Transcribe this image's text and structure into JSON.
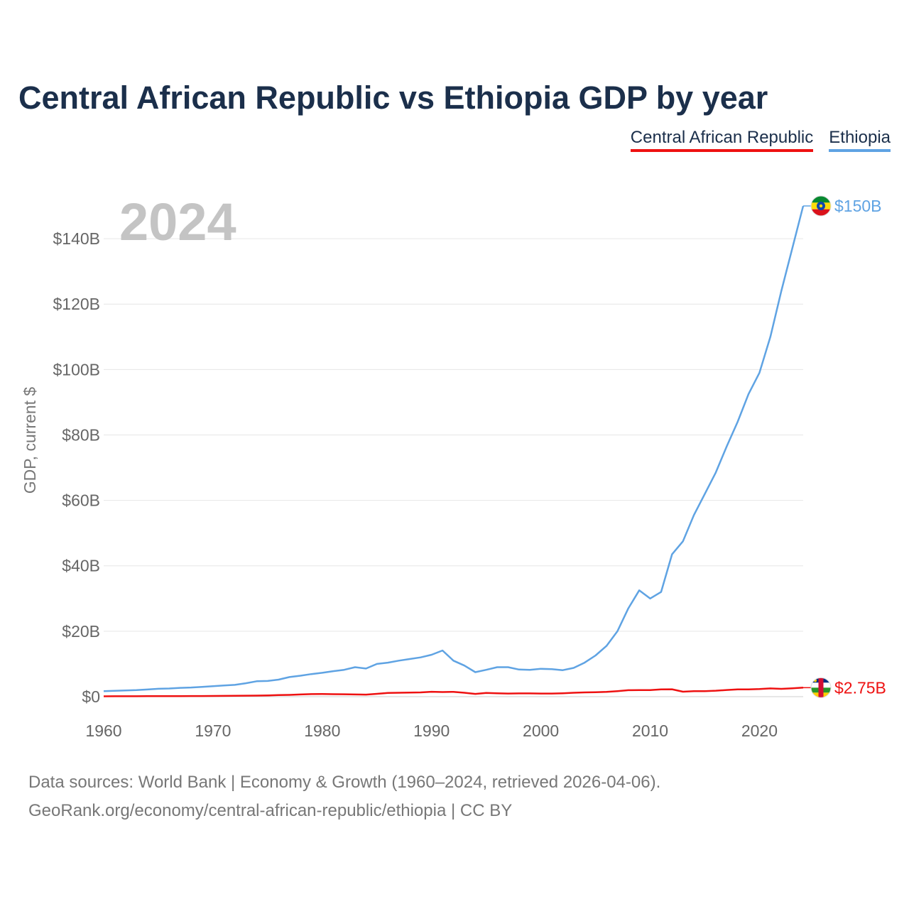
{
  "header": {
    "title": "Central African Republic vs Ethiopia GDP by year"
  },
  "legend": {
    "items": [
      {
        "label": "Central African Republic",
        "color": "#ee1111"
      },
      {
        "label": "Ethiopia",
        "color": "#5fa3e3"
      }
    ]
  },
  "footer": {
    "line1": "Data sources: World Bank | Economy & Growth (1960–2024, retrieved 2026-04-06).",
    "line2": "GeoRank.org/economy/central-african-republic/ethiopia | CC BY"
  },
  "chart_data": {
    "type": "line",
    "title": "Central African Republic vs Ethiopia GDP by year",
    "year_label": "2024",
    "xlabel": "",
    "ylabel": "GDP, current $",
    "xlim": [
      1960,
      2024
    ],
    "ylim": [
      0,
      150
    ],
    "x_ticks": [
      "1960",
      "1970",
      "1980",
      "1990",
      "2000",
      "2010",
      "2020"
    ],
    "x_tick_values": [
      1960,
      1970,
      1980,
      1990,
      2000,
      2010,
      2020
    ],
    "y_ticks": [
      "$0",
      "$20B",
      "$40B",
      "$60B",
      "$80B",
      "$100B",
      "$120B",
      "$140B"
    ],
    "y_tick_values": [
      0,
      20,
      40,
      60,
      80,
      100,
      120,
      140
    ],
    "grid": true,
    "legend_position": "top-right",
    "x": [
      1960,
      1961,
      1962,
      1963,
      1964,
      1965,
      1966,
      1967,
      1968,
      1969,
      1970,
      1971,
      1972,
      1973,
      1974,
      1975,
      1976,
      1977,
      1978,
      1979,
      1980,
      1981,
      1982,
      1983,
      1984,
      1985,
      1986,
      1987,
      1988,
      1989,
      1990,
      1991,
      1992,
      1993,
      1994,
      1995,
      1996,
      1997,
      1998,
      1999,
      2000,
      2001,
      2002,
      2003,
      2004,
      2005,
      2006,
      2007,
      2008,
      2009,
      2010,
      2011,
      2012,
      2013,
      2014,
      2015,
      2016,
      2017,
      2018,
      2019,
      2020,
      2021,
      2022,
      2023,
      2024
    ],
    "series": [
      {
        "name": "Ethiopia",
        "color": "#5fa3e3",
        "end_label": "$150B",
        "flag": "ethiopia-flag-icon",
        "values": [
          1.7,
          1.8,
          1.9,
          2.0,
          2.2,
          2.4,
          2.5,
          2.7,
          2.8,
          3.0,
          3.2,
          3.4,
          3.6,
          4.1,
          4.7,
          4.8,
          5.2,
          6.0,
          6.4,
          6.9,
          7.3,
          7.8,
          8.2,
          9.0,
          8.6,
          10.0,
          10.4,
          11.0,
          11.5,
          12.0,
          12.8,
          14.1,
          11.0,
          9.5,
          7.5,
          8.2,
          9.0,
          9.0,
          8.3,
          8.2,
          8.5,
          8.4,
          8.1,
          8.8,
          10.4,
          12.6,
          15.5,
          20.0,
          27.0,
          32.5,
          30.0,
          32.0,
          43.5,
          47.5,
          55.5,
          62.0,
          68.5,
          76.5,
          84.0,
          92.5,
          99.0,
          110.0,
          124.0,
          137.0,
          150.0
        ]
      },
      {
        "name": "Central African Republic",
        "color": "#ee1111",
        "end_label": "$2.75B",
        "flag": "central-african-republic-flag-icon",
        "values": [
          0.11,
          0.12,
          0.13,
          0.14,
          0.15,
          0.16,
          0.17,
          0.18,
          0.19,
          0.2,
          0.21,
          0.23,
          0.25,
          0.3,
          0.33,
          0.4,
          0.47,
          0.55,
          0.67,
          0.78,
          0.8,
          0.75,
          0.73,
          0.68,
          0.64,
          0.87,
          1.12,
          1.2,
          1.25,
          1.3,
          1.5,
          1.42,
          1.47,
          1.2,
          0.84,
          1.12,
          1.03,
          0.95,
          1.0,
          1.0,
          0.96,
          0.95,
          1.05,
          1.2,
          1.3,
          1.35,
          1.46,
          1.7,
          1.98,
          2.02,
          2.02,
          2.22,
          2.25,
          1.53,
          1.7,
          1.7,
          1.82,
          2.05,
          2.22,
          2.22,
          2.32,
          2.52,
          2.38,
          2.55,
          2.75
        ]
      }
    ]
  }
}
